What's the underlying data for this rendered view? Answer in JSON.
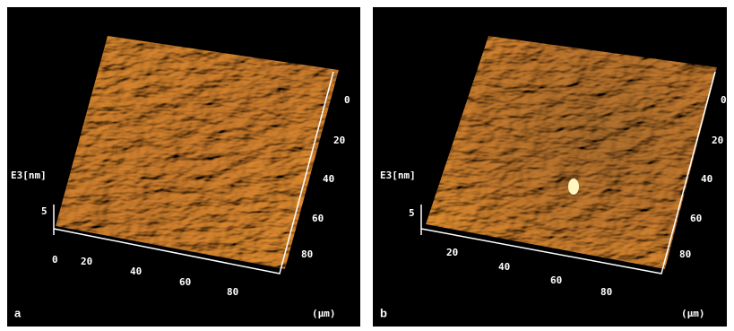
{
  "panels": [
    {
      "label": "a",
      "z_label": "E3[nm]",
      "z_tick": "5",
      "x_ticks": [
        "0",
        "20",
        "40",
        "60",
        "80"
      ],
      "y_ticks": [
        "0",
        "20",
        "40",
        "60",
        "80"
      ],
      "unit": "(µm)"
    },
    {
      "label": "b",
      "z_label": "E3[nm]",
      "z_tick": "5",
      "x_ticks": [
        "20",
        "40",
        "60",
        "80"
      ],
      "y_ticks": [
        "0",
        "20",
        "40",
        "60",
        "80"
      ],
      "unit": "(µm)"
    }
  ]
}
